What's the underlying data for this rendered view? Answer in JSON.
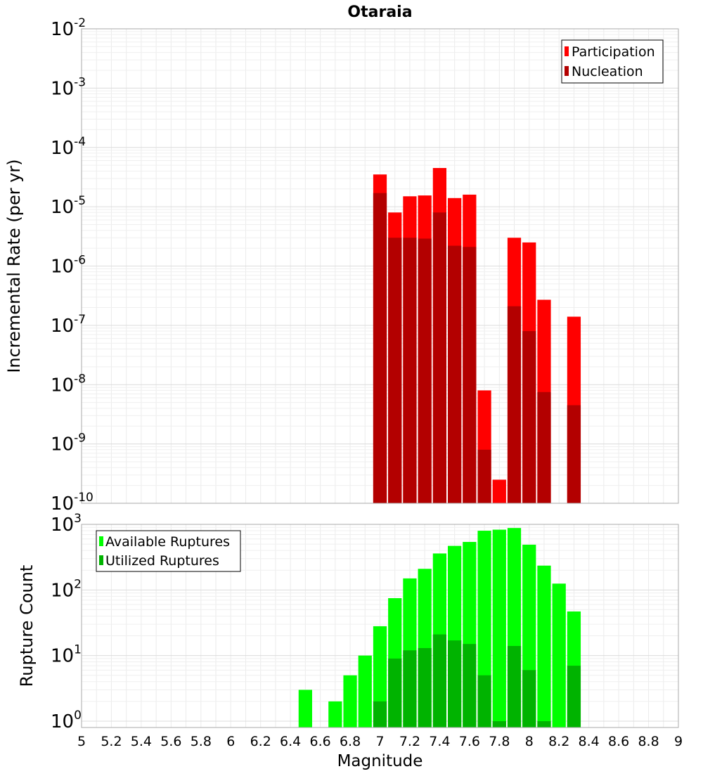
{
  "chart_data": [
    {
      "type": "bar",
      "title": "Otaraia",
      "ylabel": "Incremental Rate (per yr)",
      "yscale": "log",
      "ylim_exp": [
        -10,
        -2
      ],
      "xlim": [
        5,
        9
      ],
      "bin_width": 0.1,
      "grid": true,
      "legend_position": "top-right",
      "x": [
        7.0,
        7.1,
        7.2,
        7.3,
        7.4,
        7.5,
        7.6,
        7.7,
        7.8,
        7.9,
        8.0,
        8.1,
        8.2,
        8.3
      ],
      "series": [
        {
          "name": "Participation",
          "color": "#ff0000",
          "values": [
            3.5e-05,
            8e-06,
            1.5e-05,
            1.55e-05,
            4.5e-05,
            1.4e-05,
            1.6e-05,
            8e-09,
            2.5e-10,
            3e-06,
            2.5e-06,
            2.7e-07,
            null,
            1.4e-07
          ]
        },
        {
          "name": "Nucleation",
          "color": "#b30000",
          "values": [
            1.7e-05,
            3e-06,
            3e-06,
            2.9e-06,
            8e-06,
            2.2e-06,
            2.1e-06,
            8e-10,
            null,
            2.1e-07,
            8e-08,
            7.5e-09,
            null,
            4.5e-09
          ]
        }
      ]
    },
    {
      "type": "bar",
      "title": "",
      "ylabel": "Rupture Count",
      "xlabel": "Magnitude",
      "yscale": "log",
      "ylim": [
        0.8,
        1000
      ],
      "xlim": [
        5,
        9
      ],
      "bin_width": 0.1,
      "grid": true,
      "legend_position": "top-left",
      "xticks": [
        "5",
        "5.2",
        "5.4",
        "5.6",
        "5.8",
        "6",
        "6.2",
        "6.4",
        "6.6",
        "6.8",
        "7",
        "7.2",
        "7.4",
        "7.6",
        "7.8",
        "8",
        "8.2",
        "8.4",
        "8.6",
        "8.8",
        "9"
      ],
      "x": [
        6.5,
        6.7,
        6.8,
        6.9,
        7.0,
        7.1,
        7.2,
        7.3,
        7.4,
        7.5,
        7.6,
        7.7,
        7.8,
        7.9,
        8.0,
        8.1,
        8.2,
        8.3
      ],
      "series": [
        {
          "name": "Available Ruptures",
          "color": "#00ff00",
          "values": [
            3,
            2,
            5,
            10,
            28,
            75,
            150,
            210,
            360,
            470,
            540,
            800,
            830,
            880,
            490,
            235,
            125,
            47
          ]
        },
        {
          "name": "Utilized Ruptures",
          "color": "#00b300",
          "values": [
            null,
            null,
            null,
            null,
            2,
            9,
            12,
            13,
            21,
            17,
            15,
            5,
            1,
            14,
            6,
            1,
            null,
            7
          ]
        }
      ]
    }
  ]
}
